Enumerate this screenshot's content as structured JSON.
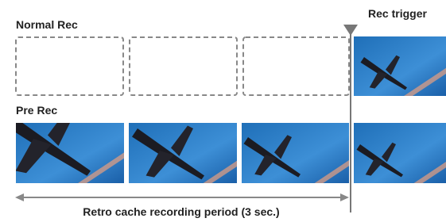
{
  "header": {
    "trigger": "Rec trigger"
  },
  "rows": [
    {
      "label": "Normal Rec"
    },
    {
      "label": "Pre Rec"
    }
  ],
  "footer": {
    "period": "Retro cache recording period (3 sec.)"
  }
}
